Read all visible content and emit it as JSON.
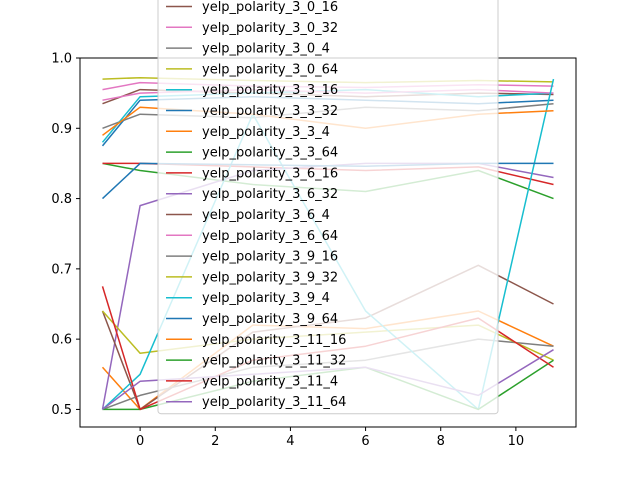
{
  "chart_data": {
    "type": "line",
    "title": "",
    "xlabel": "",
    "ylabel": "",
    "xlim": [
      -1.6,
      11.6
    ],
    "ylim": [
      0.475,
      1.0
    ],
    "x": [
      -1,
      0,
      3,
      6,
      9,
      11
    ],
    "xticks": [
      0,
      2,
      4,
      6,
      8,
      10
    ],
    "yticks": [
      0.5,
      0.6,
      0.7,
      0.8,
      0.9,
      1.0
    ],
    "ytick_labels": [
      "0.5",
      "0.6",
      "0.7",
      "0.8",
      "0.9",
      "1.0"
    ],
    "grid": false,
    "legend_position": "upper-center",
    "series": [
      {
        "name": "yelp_polarity_3_0_16",
        "color": "#8c564b",
        "values": [
          0.935,
          0.955,
          0.95,
          0.945,
          0.95,
          0.948
        ]
      },
      {
        "name": "yelp_polarity_3_0_32",
        "color": "#e377c2",
        "values": [
          0.955,
          0.965,
          0.96,
          0.958,
          0.962,
          0.96
        ]
      },
      {
        "name": "yelp_polarity_3_0_4",
        "color": "#7f7f7f",
        "values": [
          0.9,
          0.92,
          0.915,
          0.93,
          0.925,
          0.935
        ]
      },
      {
        "name": "yelp_polarity_3_0_64",
        "color": "#bcbd22",
        "values": [
          0.97,
          0.972,
          0.968,
          0.965,
          0.968,
          0.966
        ]
      },
      {
        "name": "yelp_polarity_3_3_16",
        "color": "#17becf",
        "values": [
          0.88,
          0.945,
          0.95,
          0.955,
          0.945,
          0.95
        ]
      },
      {
        "name": "yelp_polarity_3_3_32",
        "color": "#1f77b4",
        "values": [
          0.875,
          0.94,
          0.945,
          0.94,
          0.935,
          0.94
        ]
      },
      {
        "name": "yelp_polarity_3_3_4",
        "color": "#ff7f0e",
        "values": [
          0.56,
          0.5,
          0.62,
          0.615,
          0.64,
          0.59
        ]
      },
      {
        "name": "yelp_polarity_3_3_64",
        "color": "#2ca02c",
        "values": [
          0.85,
          0.84,
          0.82,
          0.81,
          0.84,
          0.8
        ]
      },
      {
        "name": "yelp_polarity_3_6_16",
        "color": "#d62728",
        "values": [
          0.85,
          0.85,
          0.845,
          0.84,
          0.845,
          0.82
        ]
      },
      {
        "name": "yelp_polarity_3_6_32",
        "color": "#9467bd",
        "values": [
          0.5,
          0.79,
          0.84,
          0.85,
          0.85,
          0.83
        ]
      },
      {
        "name": "yelp_polarity_3_6_4",
        "color": "#8c564b",
        "values": [
          0.64,
          0.5,
          0.61,
          0.63,
          0.705,
          0.65
        ]
      },
      {
        "name": "yelp_polarity_3_6_64",
        "color": "#e377c2",
        "values": [
          0.94,
          0.95,
          0.955,
          0.95,
          0.955,
          0.95
        ]
      },
      {
        "name": "yelp_polarity_3_9_16",
        "color": "#7f7f7f",
        "values": [
          0.5,
          0.52,
          0.56,
          0.57,
          0.6,
          0.59
        ]
      },
      {
        "name": "yelp_polarity_3_9_32",
        "color": "#bcbd22",
        "values": [
          0.64,
          0.58,
          0.6,
          0.61,
          0.62,
          0.57
        ]
      },
      {
        "name": "yelp_polarity_3_9_4",
        "color": "#17becf",
        "values": [
          0.5,
          0.55,
          0.92,
          0.64,
          0.5,
          0.97
        ]
      },
      {
        "name": "yelp_polarity_3_9_64",
        "color": "#1f77b4",
        "values": [
          0.8,
          0.85,
          0.848,
          0.846,
          0.85,
          0.85
        ]
      },
      {
        "name": "yelp_polarity_3_11_16",
        "color": "#ff7f0e",
        "values": [
          0.89,
          0.93,
          0.92,
          0.9,
          0.92,
          0.925
        ]
      },
      {
        "name": "yelp_polarity_3_11_32",
        "color": "#2ca02c",
        "values": [
          0.5,
          0.5,
          0.54,
          0.56,
          0.5,
          0.57
        ]
      },
      {
        "name": "yelp_polarity_3_11_4",
        "color": "#d62728",
        "values": [
          0.675,
          0.5,
          0.57,
          0.59,
          0.63,
          0.56
        ]
      },
      {
        "name": "yelp_polarity_3_11_64",
        "color": "#9467bd",
        "values": [
          0.5,
          0.54,
          0.55,
          0.56,
          0.52,
          0.585
        ]
      }
    ]
  }
}
